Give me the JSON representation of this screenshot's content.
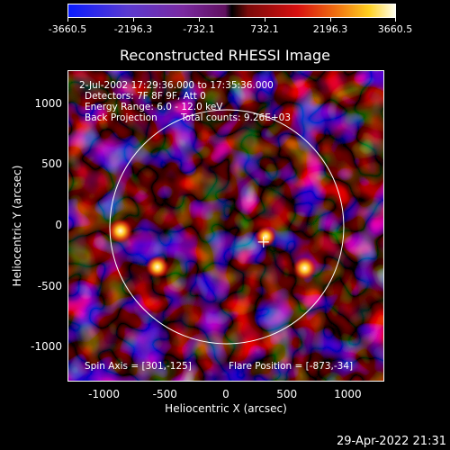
{
  "colorbar": {
    "ticks": [
      "-3660.5",
      "-2196.3",
      "-732.1",
      "732.1",
      "2196.3",
      "3660.5"
    ]
  },
  "chart_data": {
    "type": "heatmap",
    "title": "Reconstructed RHESSI Image",
    "xlabel": "Heliocentric X (arcsec)",
    "ylabel": "Heliocentric Y (arcsec)",
    "xlim": [
      -1300,
      1300
    ],
    "ylim": [
      -1280,
      1280
    ],
    "xticks": [
      "-1000",
      "-500",
      "0",
      "500",
      "1000"
    ],
    "yticks": [
      "1000",
      "500",
      "0",
      "-500",
      "-1000"
    ],
    "zlim": [
      -3660.5,
      3660.5
    ],
    "solar_limb_radius": 960,
    "marker": {
      "x": 301,
      "y": -125
    },
    "bright_sources": [
      {
        "x": -873,
        "y": -34,
        "value": 3660.5
      },
      {
        "x": -570,
        "y": -330,
        "value": 3000
      },
      {
        "x": 640,
        "y": -340,
        "value": 3300
      },
      {
        "x": 320,
        "y": -80,
        "value": 2200
      }
    ],
    "annotations": {
      "time_range": "2-Jul-2002 17:29:36.000 to 17:35:36.000",
      "detectors": "Detectors: 7F 8F 9F, Att 0",
      "energy_range": "Energy Range: 6.0 - 12.0 keV",
      "method": "Back Projection",
      "total_counts": "Total counts: 9.26E+03",
      "spin_axis": "Spin Axis = [301,-125]",
      "flare_position": "Flare Position = [-873,-34]"
    }
  },
  "footer": {
    "timestamp": "29-Apr-2022 21:31"
  }
}
